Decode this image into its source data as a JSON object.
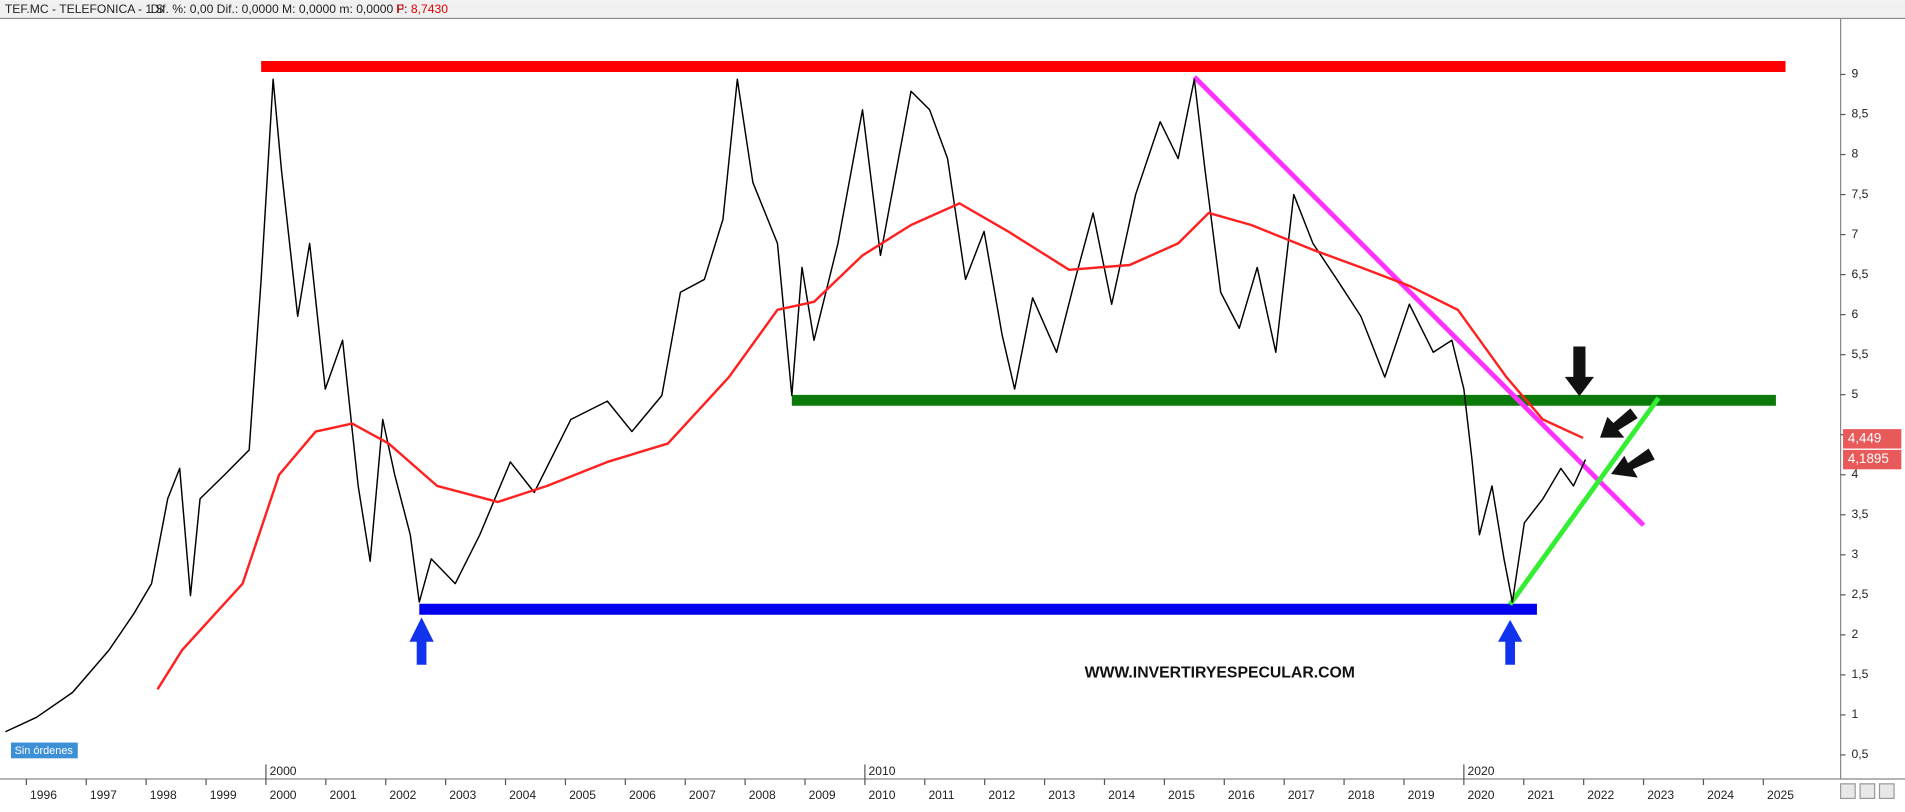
{
  "chart_data": {
    "type": "line",
    "header": {
      "symbol": "TEF.MC - TELEFONICA - 1 S",
      "stats": "Dif. %: 0,00  Dif.: 0,0000  M: 0,0000  m: 0,0000  F:",
      "price": "P: 8,7430"
    },
    "button": "Sin órdenes",
    "watermark": "WWW.INVERTIRYESPECULAR.COM",
    "xlim": [
      1995.56,
      2026.29
    ],
    "ylim": [
      0.2,
      9.7
    ],
    "xticks": [
      1996,
      1997,
      1998,
      1999,
      2000,
      2001,
      2002,
      2003,
      2004,
      2005,
      2006,
      2007,
      2008,
      2009,
      2010,
      2011,
      2012,
      2013,
      2014,
      2015,
      2016,
      2017,
      2018,
      2019,
      2020,
      2021,
      2022,
      2023,
      2024,
      2025
    ],
    "xticks_major": [
      2000,
      2010,
      2020
    ],
    "yticks": [
      {
        "value": 0.5,
        "label": "0,5"
      },
      1,
      {
        "value": 1.5,
        "label": "1,5"
      },
      2,
      {
        "value": 2.5,
        "label": "2,5"
      },
      3,
      {
        "value": 3.5,
        "label": "3,5"
      },
      4,
      {
        "value": 4.5,
        "label": "4,5"
      },
      5,
      {
        "value": 5.5,
        "label": "5,5"
      },
      6,
      {
        "value": 6.5,
        "label": "6,5"
      },
      7,
      {
        "value": 7.5,
        "label": "7,5"
      },
      8,
      {
        "value": 8.5,
        "label": "8,5"
      },
      9
    ],
    "grid": false,
    "series": [
      {
        "color": "#000000",
        "x": [
          1995.65,
          1996.17,
          1996.77,
          1997.38,
          1997.79,
          1998.09,
          1998.36,
          1998.56,
          1998.74,
          1998.9,
          1999.31,
          1999.72,
          1999.92,
          2000.12,
          2000.26,
          2000.53,
          2000.73,
          2000.99,
          2001.28,
          2001.54,
          2001.74,
          2001.95,
          2002.15,
          2002.41,
          2002.56,
          2002.76,
          2003.16,
          2003.57,
          2004.08,
          2004.48,
          2005.09,
          2005.7,
          2006.11,
          2006.61,
          2006.92,
          2007.32,
          2007.63,
          2007.87,
          2008.13,
          2008.54,
          2008.78,
          2008.95,
          2009.15,
          2009.55,
          2009.96,
          2010.26,
          2010.77,
          2011.08,
          2011.38,
          2011.68,
          2011.99,
          2012.29,
          2012.5,
          2012.8,
          2013.2,
          2013.51,
          2013.81,
          2014.12,
          2014.52,
          2014.93,
          2015.23,
          2015.5,
          2015.68,
          2015.94,
          2016.25,
          2016.55,
          2016.86,
          2017.16,
          2017.48,
          2017.88,
          2018.28,
          2018.68,
          2019.09,
          2019.49,
          2019.8,
          2020.0,
          2020.14,
          2020.26,
          2020.47,
          2020.67,
          2020.81,
          2021.01,
          2021.32,
          2021.62,
          2021.83,
          2022.03
        ],
        "values": [
          0.79,
          0.97,
          1.28,
          1.81,
          2.26,
          2.64,
          3.7,
          4.08,
          2.49,
          3.7,
          4.0,
          4.31,
          6.44,
          8.94,
          7.8,
          5.98,
          6.89,
          5.07,
          5.68,
          3.86,
          2.92,
          4.69,
          4.0,
          3.25,
          2.41,
          2.95,
          2.64,
          3.25,
          4.16,
          3.78,
          4.69,
          4.92,
          4.54,
          4.99,
          6.28,
          6.44,
          7.19,
          8.94,
          7.65,
          6.89,
          4.99,
          6.59,
          5.68,
          6.89,
          8.56,
          6.74,
          8.79,
          8.56,
          7.95,
          6.44,
          7.04,
          5.75,
          5.07,
          6.21,
          5.53,
          6.44,
          7.27,
          6.13,
          7.5,
          8.41,
          7.95,
          8.94,
          7.8,
          6.28,
          5.83,
          6.59,
          5.53,
          7.5,
          6.89,
          6.44,
          5.98,
          5.22,
          6.13,
          5.53,
          5.68,
          5.07,
          4.16,
          3.25,
          3.86,
          2.95,
          2.41,
          3.4,
          3.7,
          4.08,
          3.86,
          4.19
        ],
        "last_value": {
          "value": 4.1895,
          "label": "4,1895"
        }
      },
      {
        "color": "#ff2020",
        "x": [
          1998.19,
          1998.6,
          1999.61,
          2000.22,
          2000.83,
          2001.44,
          2002.05,
          2002.86,
          2003.87,
          2004.69,
          2005.7,
          2006.71,
          2007.73,
          2008.54,
          2009.15,
          2009.96,
          2010.77,
          2011.58,
          2012.39,
          2013.41,
          2014.42,
          2015.23,
          2015.74,
          2016.45,
          2017.48,
          2018.28,
          2019.09,
          2019.9,
          2020.71,
          2021.32,
          2021.99
        ],
        "values": [
          1.32,
          1.81,
          2.64,
          4.0,
          4.54,
          4.64,
          4.39,
          3.86,
          3.66,
          3.86,
          4.16,
          4.39,
          5.22,
          6.06,
          6.16,
          6.74,
          7.12,
          7.39,
          7.04,
          6.56,
          6.62,
          6.89,
          7.27,
          7.12,
          6.81,
          6.59,
          6.36,
          6.06,
          5.22,
          4.69,
          4.46
        ],
        "last_value": {
          "value": 4.449,
          "label": "4,449"
        }
      }
    ],
    "overlays": [
      {
        "color": "#ff0000",
        "x": [
          1999.92,
          2025.37
        ],
        "y": [
          9.1,
          9.1
        ]
      },
      {
        "color": "#0b7a0b",
        "x": [
          2008.78,
          2025.21
        ],
        "y": [
          4.93,
          4.93
        ]
      },
      {
        "color": "#0000ee",
        "x": [
          2002.56,
          2021.22
        ],
        "y": [
          2.32,
          2.32
        ]
      },
      {
        "color": "#ff33ff",
        "x": [
          2015.5,
          2023.0
        ],
        "y": [
          8.97,
          3.37
        ]
      },
      {
        "color": "#33ee33",
        "x": [
          2020.77,
          2023.25
        ],
        "y": [
          2.38,
          4.96
        ]
      }
    ]
  }
}
